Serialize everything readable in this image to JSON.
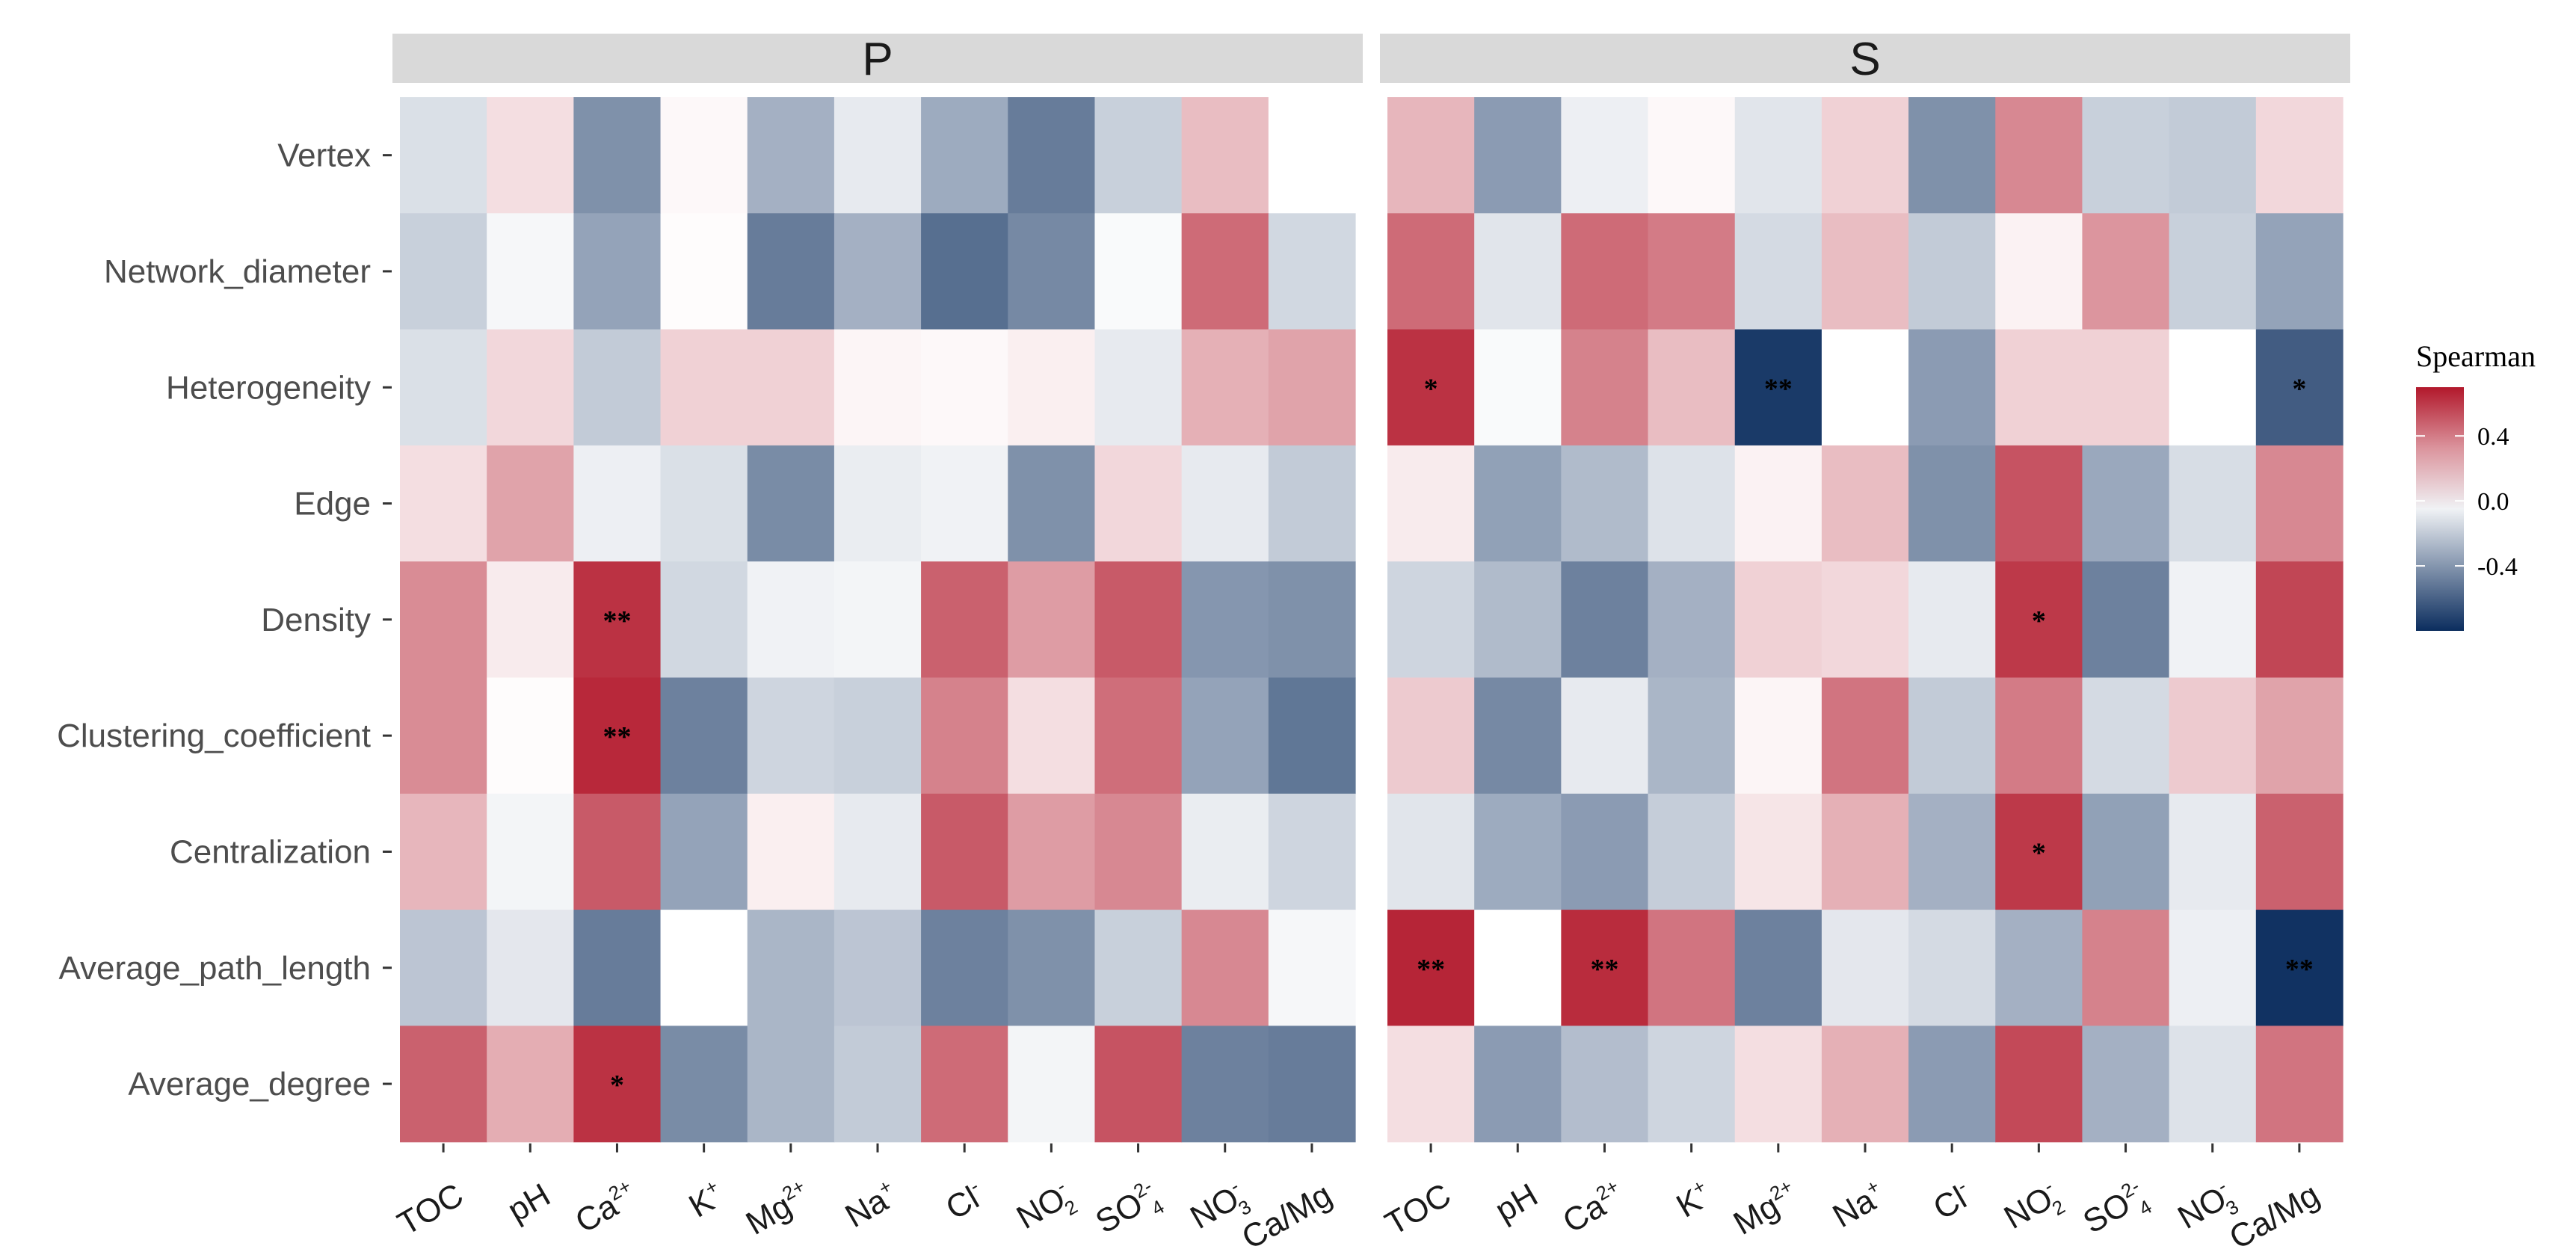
{
  "chart_data": {
    "type": "heatmap",
    "facets": [
      "P",
      "S"
    ],
    "rows": [
      "Vertex",
      "Network_diameter",
      "Heterogeneity",
      "Edge",
      "Density",
      "Clustering_coefficient",
      "Centralization",
      "Average_path_length",
      "Average_degree"
    ],
    "columns": {
      "P": [
        {
          "base": "TOC",
          "sup": "",
          "sub": ""
        },
        {
          "base": "pH",
          "sup": "",
          "sub": ""
        },
        {
          "base": "Ca",
          "sup": "2+",
          "sub": ""
        },
        {
          "base": "K",
          "sup": "+",
          "sub": ""
        },
        {
          "base": "Mg",
          "sup": "2+",
          "sub": ""
        },
        {
          "base": "Na",
          "sup": "+",
          "sub": ""
        },
        {
          "base": "Cl",
          "sup": "-",
          "sub": ""
        },
        {
          "base": "NO",
          "sup": "-",
          "sub": "2"
        },
        {
          "base": "SO",
          "sup": "2-",
          "sub": "4"
        },
        {
          "base": "NO",
          "sup": "-",
          "sub": "3"
        },
        {
          "base": "Ca/Mg",
          "sup": "",
          "sub": ""
        }
      ],
      "S": [
        {
          "base": "TOC",
          "sup": "",
          "sub": ""
        },
        {
          "base": "pH",
          "sup": "",
          "sub": ""
        },
        {
          "base": "Ca",
          "sup": "2+",
          "sub": ""
        },
        {
          "base": "K",
          "sup": "+",
          "sub": ""
        },
        {
          "base": "Mg",
          "sup": "2+",
          "sub": ""
        },
        {
          "base": "Na",
          "sup": "+",
          "sub": ""
        },
        {
          "base": "Cl",
          "sup": "-",
          "sub": ""
        },
        {
          "base": "NO",
          "sup": "-",
          "sub": "2"
        },
        {
          "base": "SO",
          "sup": "2-",
          "sub": "4"
        },
        {
          "base": "NO",
          "sup": "-",
          "sub": "3"
        },
        {
          "base": "Ca/Mg",
          "sup": "",
          "sub": ""
        }
      ]
    },
    "values": {
      "P": [
        [
          -0.12,
          0.1,
          -0.42,
          0.02,
          -0.3,
          -0.08,
          -0.32,
          -0.5,
          -0.18,
          0.2,
          0.0
        ],
        [
          -0.18,
          -0.03,
          -0.35,
          0.01,
          -0.5,
          -0.3,
          -0.55,
          -0.45,
          -0.02,
          0.45,
          -0.15
        ],
        [
          -0.12,
          0.12,
          -0.2,
          0.14,
          0.14,
          0.03,
          0.02,
          0.05,
          -0.08,
          0.24,
          0.28
        ],
        [
          0.1,
          0.28,
          -0.06,
          -0.12,
          -0.44,
          -0.07,
          -0.05,
          -0.42,
          0.12,
          -0.08,
          -0.2
        ],
        [
          0.35,
          0.06,
          0.62,
          -0.15,
          -0.05,
          -0.04,
          0.48,
          0.3,
          0.5,
          -0.4,
          -0.42
        ],
        [
          0.35,
          0.01,
          0.65,
          -0.48,
          -0.16,
          -0.18,
          0.38,
          0.1,
          0.44,
          -0.35,
          -0.52
        ],
        [
          0.22,
          -0.04,
          0.5,
          -0.35,
          0.05,
          -0.08,
          0.5,
          0.3,
          0.36,
          -0.07,
          -0.16
        ],
        [
          -0.22,
          -0.09,
          -0.5,
          0.0,
          -0.28,
          -0.22,
          -0.48,
          -0.42,
          -0.18,
          0.36,
          -0.03
        ],
        [
          0.48,
          0.25,
          0.62,
          -0.44,
          -0.28,
          -0.2,
          0.45,
          -0.04,
          0.52,
          -0.48,
          -0.5
        ]
      ],
      "S": [
        [
          0.22,
          -0.38,
          -0.06,
          0.02,
          -0.1,
          0.14,
          -0.42,
          0.36,
          -0.18,
          -0.2,
          0.12
        ],
        [
          0.45,
          -0.1,
          0.45,
          0.4,
          -0.14,
          0.2,
          -0.2,
          0.04,
          0.32,
          -0.18,
          -0.35
        ],
        [
          0.62,
          -0.02,
          0.38,
          0.2,
          -0.75,
          0.0,
          -0.38,
          0.14,
          0.14,
          0.0,
          -0.62
        ],
        [
          0.06,
          -0.36,
          -0.26,
          -0.11,
          0.04,
          0.2,
          -0.42,
          0.52,
          -0.33,
          -0.13,
          0.36
        ],
        [
          -0.16,
          -0.26,
          -0.48,
          -0.3,
          0.14,
          0.12,
          -0.08,
          0.6,
          -0.48,
          -0.05,
          0.56
        ],
        [
          0.16,
          -0.45,
          -0.08,
          -0.28,
          0.03,
          0.42,
          -0.2,
          0.4,
          -0.14,
          0.16,
          0.28
        ],
        [
          -0.1,
          -0.32,
          -0.38,
          -0.19,
          0.08,
          0.24,
          -0.3,
          0.6,
          -0.36,
          -0.08,
          0.48
        ],
        [
          0.66,
          0.0,
          0.64,
          0.42,
          -0.48,
          -0.09,
          -0.14,
          -0.3,
          0.38,
          -0.06,
          -0.78
        ],
        [
          0.1,
          -0.38,
          -0.25,
          -0.16,
          0.1,
          0.24,
          -0.38,
          0.55,
          -0.3,
          -0.11,
          0.42
        ]
      ]
    },
    "significance": {
      "P": [
        [
          "",
          "",
          "",
          "",
          "",
          "",
          "",
          "",
          "",
          "",
          ""
        ],
        [
          "",
          "",
          "",
          "",
          "",
          "",
          "",
          "",
          "",
          "",
          ""
        ],
        [
          "",
          "",
          "",
          "",
          "",
          "",
          "",
          "",
          "",
          "",
          ""
        ],
        [
          "",
          "",
          "",
          "",
          "",
          "",
          "",
          "",
          "",
          "",
          ""
        ],
        [
          "",
          "",
          "**",
          "",
          "",
          "",
          "",
          "",
          "",
          "",
          ""
        ],
        [
          "",
          "",
          "**",
          "",
          "",
          "",
          "",
          "",
          "",
          "",
          ""
        ],
        [
          "",
          "",
          "",
          "",
          "",
          "",
          "",
          "",
          "",
          "",
          ""
        ],
        [
          "",
          "",
          "",
          "",
          "",
          "",
          "",
          "",
          "",
          "",
          ""
        ],
        [
          "",
          "",
          "*",
          "",
          "",
          "",
          "",
          "",
          "",
          "",
          ""
        ]
      ],
      "S": [
        [
          "",
          "",
          "",
          "",
          "",
          "",
          "",
          "",
          "",
          "",
          ""
        ],
        [
          "",
          "",
          "",
          "",
          "",
          "",
          "",
          "",
          "",
          "",
          ""
        ],
        [
          "*",
          "",
          "",
          "",
          "**",
          "",
          "",
          "",
          "",
          "",
          "*"
        ],
        [
          "",
          "",
          "",
          "",
          "",
          "",
          "",
          "",
          "",
          "",
          ""
        ],
        [
          "",
          "",
          "",
          "",
          "",
          "",
          "",
          "*",
          "",
          "",
          ""
        ],
        [
          "",
          "",
          "",
          "",
          "",
          "",
          "",
          "",
          "",
          "",
          ""
        ],
        [
          "",
          "",
          "",
          "",
          "",
          "",
          "",
          "*",
          "",
          "",
          ""
        ],
        [
          "**",
          "",
          "**",
          "",
          "",
          "",
          "",
          "",
          "",
          "",
          "**"
        ],
        [
          "",
          "",
          "",
          "",
          "",
          "",
          "",
          "",
          "",
          "",
          ""
        ]
      ]
    },
    "color_scale": {
      "low": "#0b2d5e",
      "mid": "#ffffff",
      "high": "#b2182b",
      "limits": [
        -0.8,
        0.7
      ]
    },
    "legend": {
      "title": "Spearman",
      "ticks": [
        {
          "value": 0.4,
          "label": "0.4"
        },
        {
          "value": 0.0,
          "label": "0.0"
        },
        {
          "value": -0.4,
          "label": "-0.4"
        }
      ],
      "position": "right"
    },
    "strip_color": "#d9d9d9"
  }
}
